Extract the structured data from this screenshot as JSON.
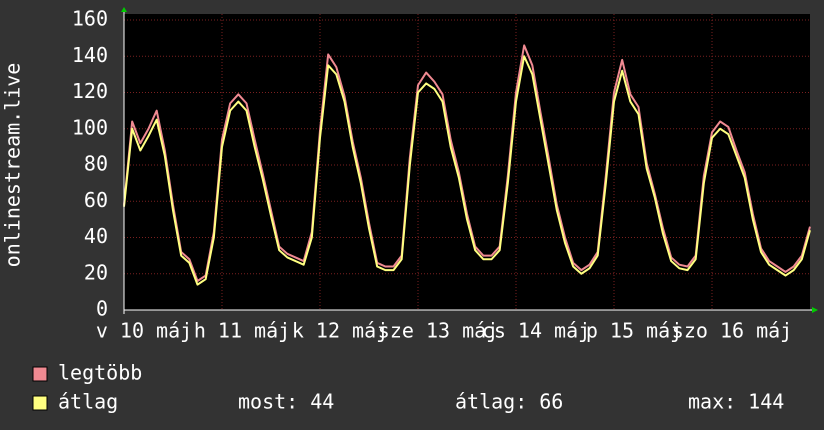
{
  "chart_data": {
    "type": "line",
    "y_label": "onlinestream.live",
    "xlim": [
      0,
      168
    ],
    "ylim": [
      0,
      160
    ],
    "xticks": [
      {
        "value": 0,
        "label": "v 10 máj"
      },
      {
        "value": 24,
        "label": "h 11 máj"
      },
      {
        "value": 48,
        "label": "k 12 máj"
      },
      {
        "value": 72,
        "label": "sze 13 máj"
      },
      {
        "value": 96,
        "label": "cs 14 máj"
      },
      {
        "value": 120,
        "label": "p 15 máj"
      },
      {
        "value": 144,
        "label": "szo 16 máj"
      }
    ],
    "yticks": [
      0,
      20,
      40,
      60,
      80,
      100,
      120,
      140,
      160
    ],
    "grid": true,
    "x": [
      0,
      2,
      4,
      6,
      8,
      10,
      12,
      14,
      16,
      18,
      20,
      22,
      24,
      26,
      28,
      30,
      32,
      34,
      36,
      38,
      40,
      42,
      44,
      46,
      48,
      50,
      52,
      54,
      56,
      58,
      60,
      62,
      64,
      66,
      68,
      70,
      72,
      74,
      76,
      78,
      80,
      82,
      84,
      86,
      88,
      90,
      92,
      94,
      96,
      98,
      100,
      102,
      104,
      106,
      108,
      110,
      112,
      114,
      116,
      118,
      120,
      122,
      124,
      126,
      128,
      130,
      132,
      134,
      136,
      138,
      140,
      142,
      144,
      146,
      148,
      150,
      152,
      154,
      156,
      158,
      160,
      162,
      164,
      166,
      168
    ],
    "series": [
      {
        "name": "legtöbb",
        "color": "#f08a92",
        "values": [
          58,
          104,
          92,
          100,
          110,
          88,
          58,
          32,
          28,
          16,
          19,
          43,
          94,
          114,
          119,
          114,
          94,
          75,
          55,
          35,
          31,
          29,
          27,
          43,
          99,
          141,
          134,
          118,
          93,
          73,
          48,
          26,
          24,
          24,
          30,
          84,
          124,
          131,
          126,
          119,
          94,
          76,
          53,
          35,
          30,
          30,
          35,
          74,
          120,
          146,
          135,
          109,
          84,
          58,
          40,
          26,
          22,
          25,
          32,
          74,
          120,
          138,
          119,
          112,
          81,
          64,
          45,
          29,
          25,
          24,
          30,
          74,
          98,
          104,
          101,
          88,
          76,
          53,
          34,
          27,
          24,
          21,
          24,
          30,
          46
        ]
      },
      {
        "name": "átlag",
        "color": "#ffff80",
        "values": [
          57,
          100,
          88,
          96,
          105,
          85,
          55,
          30,
          26,
          14,
          17,
          40,
          90,
          110,
          115,
          110,
          90,
          72,
          52,
          33,
          29,
          27,
          25,
          40,
          95,
          135,
          130,
          115,
          90,
          70,
          45,
          24,
          22,
          22,
          28,
          80,
          120,
          125,
          122,
          115,
          90,
          73,
          50,
          33,
          28,
          28,
          33,
          70,
          115,
          140,
          130,
          105,
          80,
          55,
          37,
          24,
          20,
          23,
          30,
          70,
          115,
          132,
          115,
          108,
          78,
          62,
          42,
          27,
          23,
          22,
          28,
          70,
          95,
          100,
          97,
          85,
          73,
          50,
          32,
          25,
          22,
          19,
          22,
          28,
          44
        ]
      }
    ],
    "stats": [
      {
        "label": "most:",
        "value": 44
      },
      {
        "label": "átlag:",
        "value": 66
      },
      {
        "label": "max:",
        "value": 144
      }
    ]
  }
}
